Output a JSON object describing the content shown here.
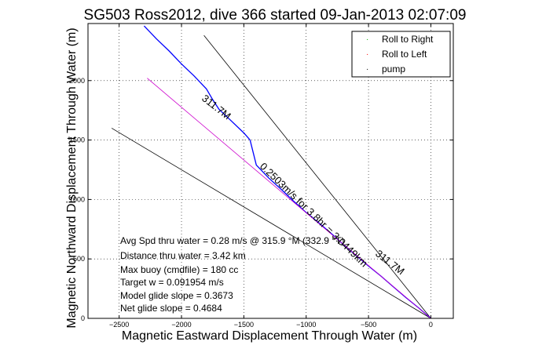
{
  "chart_data": {
    "type": "line",
    "title": "SG503 Ross2012, dive 366 started 09-Jan-2013 02:07:09",
    "xlabel": "Magnetic Eastward Displacement Through Water (m)",
    "ylabel": "Magnetic Northward Displacement Through Water (m)",
    "xlim": [
      -2750,
      180
    ],
    "ylim": [
      0,
      2480
    ],
    "x_ticks": [
      -2500,
      -2000,
      -1500,
      -1000,
      -500,
      0
    ],
    "y_ticks": [
      0,
      500,
      1000,
      1500,
      2000
    ],
    "x_tick_labels": [
      "−2500",
      "−2000",
      "−1500",
      "−1000",
      "−500",
      "0"
    ],
    "y_tick_labels": [
      "0",
      "500",
      "1000",
      "1500",
      "2000"
    ],
    "grid": true,
    "legend_position": "top-right",
    "legend": [
      "Roll to Right",
      "Roll to Left",
      "pump"
    ],
    "legend_colors": [
      "#00b000",
      "#ff0000",
      "#000000"
    ],
    "track_color": "#0000ff",
    "model_track_color": "#cc00cc",
    "series": [
      {
        "color": "#0000ff",
        "x": [
          0,
          -100,
          -200,
          -300,
          -400,
          -500,
          -600,
          -700,
          -800,
          -900,
          -1000,
          -1100,
          -1200,
          -1300,
          -1400,
          -1450,
          -1500,
          -1600,
          -1700,
          -1750,
          -1800,
          -1900,
          -2000,
          -2100,
          -2200,
          -2300
        ],
        "y": [
          0,
          90,
          175,
          265,
          355,
          440,
          530,
          620,
          715,
          805,
          890,
          985,
          1085,
          1180,
          1290,
          1500,
          1560,
          1660,
          1760,
          1840,
          1930,
          2040,
          2140,
          2250,
          2350,
          2460
        ]
      },
      {
        "color": "#cc00cc",
        "x": [
          0,
          -2275
        ],
        "y": [
          0,
          2020
        ]
      }
    ],
    "reference_lines": [
      {
        "label": "311.7M",
        "x": [
          0,
          -1820
        ],
        "y": [
          0,
          2380
        ]
      },
      {
        "label": "0.2503m/s for 3.8hr = 3.0449km",
        "x": [
          0,
          -2560
        ],
        "y": [
          0,
          1600
        ]
      }
    ],
    "annotations": [
      "Avg Spd thru water =  0.28 m/s @ 315.9 °M (332.9 °T)",
      "Distance thru water =  3.42 km",
      "Max buoy (cmdfile) = 180 cc",
      "Target w = 0.091954 m/s",
      "Model glide slope = 0.3673",
      "Net glide slope = 0.4684"
    ],
    "line_labels": {
      "track_bearing_upper": "311.7M",
      "track_bearing_lower": "311.7M",
      "model_speed": "0.2503m/s for 3.8hr = 3.0449km"
    }
  }
}
